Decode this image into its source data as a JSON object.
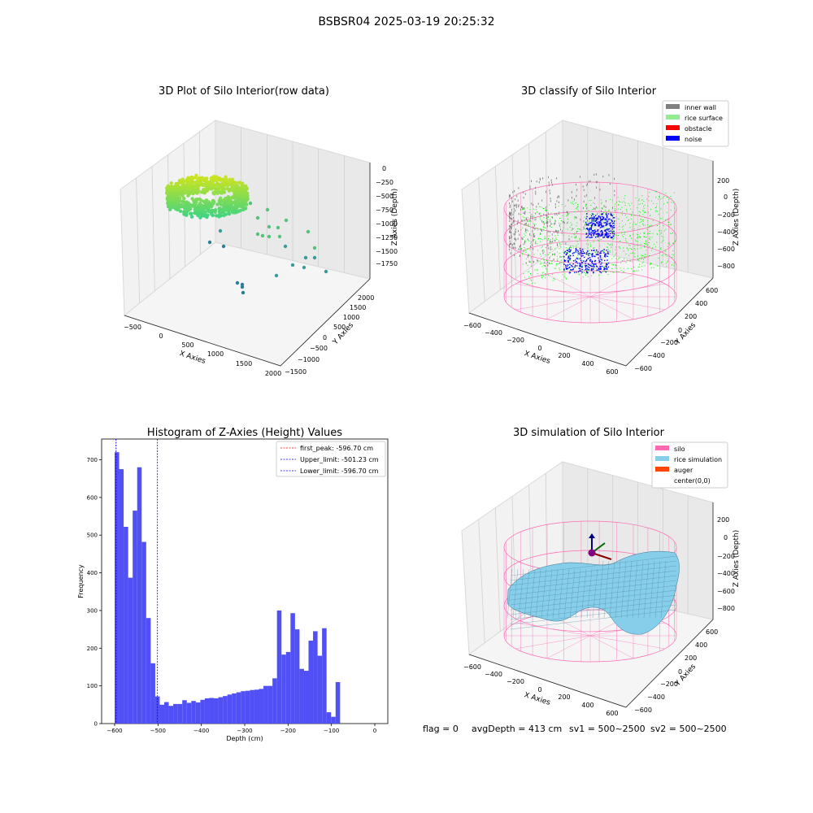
{
  "figure": {
    "suptitle": "BSBSR04 2025-03-19 20:25:32",
    "footer": {
      "flag": "flag = 0",
      "avg_depth": "avgDepth = 413 cm",
      "sv1": "sv1 = 500~2500",
      "sv2": "sv2 = 500~2500"
    }
  },
  "colors": {
    "hist_bar": "#5050f6",
    "inner_wall": "#808080",
    "rice_surface": "#90ee90",
    "obstacle": "#ff0000",
    "noise": "#0000ff",
    "silo": "#ff69b4",
    "rice_simulation": "#87ceeb",
    "auger": "#ff4500",
    "first_peak_line": "#ff0000",
    "limit_line": "#0000ff"
  },
  "chart_data": [
    {
      "type": "scatter3d",
      "title": "3D Plot of Silo Interior(row data)",
      "xlabel": "X Axies",
      "ylabel": "Y Axies",
      "zlabel": "Z Axies (Depth)",
      "x_ticks": [
        "−500",
        "0",
        "500",
        "1000",
        "1500",
        "2000"
      ],
      "y_ticks": [
        "−1500",
        "−1000",
        "−500",
        "0",
        "500",
        "1000",
        "1500",
        "2000"
      ],
      "z_ticks": [
        "0",
        "−250",
        "−500",
        "−750",
        "−1000",
        "−1250",
        "−1500",
        "−1750"
      ],
      "xlim": [
        -600,
        2000
      ],
      "ylim": [
        -1500,
        2100
      ],
      "zlim": [
        -1900,
        100
      ]
    },
    {
      "type": "scatter3d",
      "title": "3D classify of Silo Interior",
      "xlabel": "X Axies",
      "ylabel": "Y Axies",
      "zlabel": "Z Axies (Depth)",
      "x_ticks": [
        "−600",
        "−400",
        "−200",
        "0",
        "200",
        "400",
        "600"
      ],
      "y_ticks": [
        "−600",
        "−400",
        "−200",
        "0",
        "200",
        "400",
        "600"
      ],
      "z_ticks": [
        "200",
        "0",
        "−200",
        "−400",
        "−600",
        "−800"
      ],
      "legend": [
        "inner wall",
        "rice surface",
        "obstacle",
        "noise"
      ],
      "legend_position": "top-right"
    },
    {
      "type": "bar",
      "title": "Histogram of Z-Axies (Height) Values",
      "xlabel": "Depth (cm)",
      "ylabel": "Frequency",
      "xlim": [
        -630,
        30
      ],
      "ylim": [
        0,
        755
      ],
      "x_ticks": [
        -600,
        -500,
        -400,
        -300,
        -200,
        -100,
        0
      ],
      "y_ticks": [
        0,
        100,
        200,
        300,
        400,
        500,
        600,
        700
      ],
      "bin_width": 10.4,
      "bin_start": -600,
      "values": [
        720,
        675,
        522,
        387,
        565,
        680,
        482,
        280,
        160,
        72,
        50,
        57,
        47,
        52,
        52,
        62,
        55,
        60,
        56,
        63,
        67,
        68,
        67,
        70,
        73,
        77,
        80,
        83,
        86,
        87,
        89,
        90,
        92,
        100,
        100,
        120,
        300,
        183,
        190,
        293,
        250,
        145,
        140,
        220,
        245,
        180,
        253,
        30,
        18,
        110
      ],
      "vlines": [
        {
          "label": "first_peak: -596.70 cm",
          "x": -596.7,
          "style": "red-dashed"
        },
        {
          "label": "Upper_limit: -501.23 cm",
          "x": -501.23,
          "style": "blue-dashed"
        },
        {
          "label": "Lower_limit: -596.70 cm",
          "x": -596.7,
          "style": "blue-dashed"
        }
      ],
      "legend_position": "top-right"
    },
    {
      "type": "surface3d",
      "title": "3D simulation of Silo Interior",
      "xlabel": "X Axies",
      "ylabel": "Y Axies",
      "zlabel": "Z Axies (Depth)",
      "x_ticks": [
        "−600",
        "−400",
        "−200",
        "0",
        "200",
        "400",
        "600"
      ],
      "y_ticks": [
        "−600",
        "−400",
        "−200",
        "0",
        "200",
        "400",
        "600"
      ],
      "z_ticks": [
        "200",
        "0",
        "−200",
        "−400",
        "−600",
        "−800"
      ],
      "legend": [
        "silo",
        "rice simulation",
        "auger",
        "center(0,0)"
      ],
      "legend_position": "top-right"
    }
  ]
}
